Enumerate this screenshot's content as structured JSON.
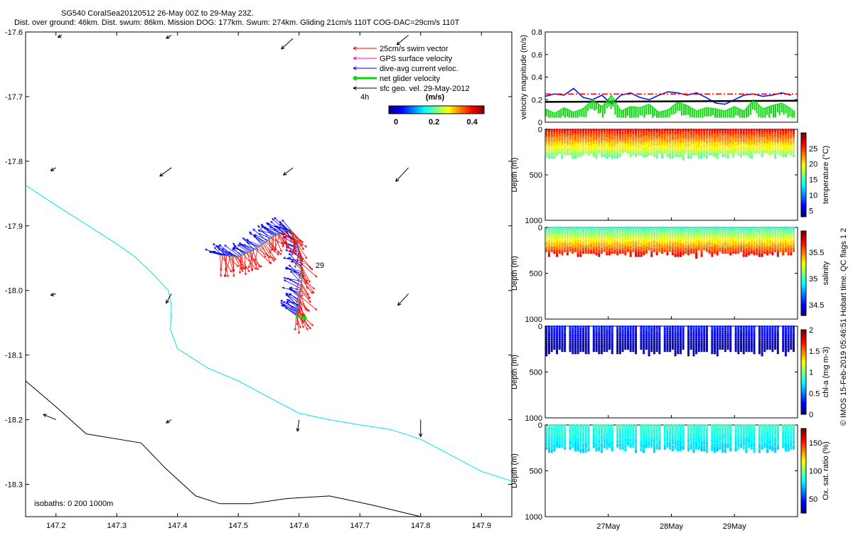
{
  "header": {
    "line1": "SG540 CoralSea20120512 26-May 00Z to 29-May 23Z.",
    "line2": "Dist. over ground: 46km. Dist. swum: 86km. Mission DOG: 177km. Swum: 274km. Gliding 21cm/s 110T COG-DAC=29cm/s 110T"
  },
  "credit": "© IMOS 15-Feb-2019 05:46:51 Hobart time. QC flags 1  2",
  "colors": {
    "swim": "#ff0000",
    "gps": "#ff00ff",
    "dac": "#0000ff",
    "net": "#00dd00",
    "sfc": "#000000",
    "contour_200": "#00e5ee",
    "contour_1000": "#000000"
  },
  "chart_data": [
    {
      "type": "scatter",
      "id": "map",
      "title": "",
      "xlabel": "",
      "ylabel": "",
      "xlim": [
        147.15,
        147.95
      ],
      "ylim": [
        -18.35,
        -17.6
      ],
      "xticks": [
        147.2,
        147.3,
        147.4,
        147.5,
        147.6,
        147.7,
        147.8,
        147.9
      ],
      "yticks": [
        -17.6,
        -17.7,
        -17.8,
        -17.9,
        -18.0,
        -18.1,
        -18.2,
        -18.3
      ],
      "legend": {
        "placement": "top-right",
        "entries": [
          "25cm/s swim vector",
          "GPS surface velocity",
          "dive-avg current veloc.",
          "net glider velocity",
          "sfc geo. vel. 29-May-2012"
        ],
        "colors": [
          "#ff0000",
          "#ff00ff",
          "#0000ff",
          "#00dd00",
          "#000000"
        ]
      },
      "timestep_label": "4h",
      "colorbar": {
        "label": "(m/s)",
        "ticks": [
          0,
          0.2,
          0.4
        ],
        "range": [
          0,
          0.5
        ]
      },
      "isobath_label": "isobaths: 0   200  1000m",
      "day_label": "29",
      "contour_200": [
        [
          147.15,
          -17.837
        ],
        [
          147.2,
          -17.868
        ],
        [
          147.25,
          -17.898
        ],
        [
          147.3,
          -17.928
        ],
        [
          147.33,
          -17.948
        ],
        [
          147.36,
          -17.975
        ],
        [
          147.385,
          -18.0
        ],
        [
          147.39,
          -18.025
        ],
        [
          147.388,
          -18.06
        ],
        [
          147.4,
          -18.09
        ],
        [
          147.45,
          -18.12
        ],
        [
          147.5,
          -18.14
        ],
        [
          147.55,
          -18.165
        ],
        [
          147.6,
          -18.19
        ],
        [
          147.65,
          -18.2
        ],
        [
          147.7,
          -18.208
        ],
        [
          147.75,
          -18.215
        ],
        [
          147.8,
          -18.23
        ],
        [
          147.85,
          -18.255
        ],
        [
          147.9,
          -18.28
        ],
        [
          147.95,
          -18.295
        ]
      ],
      "contour_1000": [
        [
          147.15,
          -18.14
        ],
        [
          147.2,
          -18.18
        ],
        [
          147.25,
          -18.222
        ],
        [
          147.34,
          -18.236
        ],
        [
          147.38,
          -18.275
        ],
        [
          147.43,
          -18.318
        ],
        [
          147.47,
          -18.33
        ],
        [
          147.52,
          -18.33
        ],
        [
          147.58,
          -18.322
        ],
        [
          147.65,
          -18.318
        ],
        [
          147.72,
          -18.332
        ],
        [
          147.8,
          -18.35
        ]
      ],
      "track": [
        [
          147.47,
          -17.945
        ],
        [
          147.5,
          -17.948
        ],
        [
          147.53,
          -17.935
        ],
        [
          147.56,
          -17.915
        ],
        [
          147.585,
          -17.905
        ],
        [
          147.6,
          -17.935
        ],
        [
          147.605,
          -17.98
        ],
        [
          147.6,
          -18.02
        ],
        [
          147.595,
          -18.04
        ]
      ],
      "net_velocity_segment": [
        [
          147.595,
          -18.04
        ],
        [
          147.612,
          -18.043
        ]
      ],
      "surface_current_vectors": [
        {
          "lon": 147.21,
          "lat": -17.605,
          "u": -0.08,
          "v": -0.04
        },
        {
          "lon": 147.39,
          "lat": -17.605,
          "u": -0.1,
          "v": -0.06
        },
        {
          "lon": 147.59,
          "lat": -17.61,
          "u": -0.22,
          "v": -0.2
        },
        {
          "lon": 147.78,
          "lat": -17.605,
          "u": -0.22,
          "v": -0.18
        },
        {
          "lon": 147.2,
          "lat": -17.81,
          "u": -0.1,
          "v": -0.06
        },
        {
          "lon": 147.39,
          "lat": -17.81,
          "u": -0.22,
          "v": -0.16
        },
        {
          "lon": 147.59,
          "lat": -17.81,
          "u": -0.18,
          "v": -0.14
        },
        {
          "lon": 147.78,
          "lat": -17.81,
          "u": -0.24,
          "v": -0.26
        },
        {
          "lon": 147.2,
          "lat": -18.005,
          "u": -0.1,
          "v": -0.03
        },
        {
          "lon": 147.39,
          "lat": -18.005,
          "u": -0.1,
          "v": -0.18
        },
        {
          "lon": 147.78,
          "lat": -18.005,
          "u": -0.2,
          "v": -0.22
        },
        {
          "lon": 147.2,
          "lat": -18.2,
          "u": -0.24,
          "v": 0.1
        },
        {
          "lon": 147.39,
          "lat": -18.2,
          "u": -0.1,
          "v": -0.06
        },
        {
          "lon": 147.6,
          "lat": -18.2,
          "u": -0.03,
          "v": -0.22
        },
        {
          "lon": 147.8,
          "lat": -18.2,
          "u": 0.0,
          "v": -0.32
        }
      ]
    },
    {
      "type": "line",
      "id": "velocity",
      "ylabel": "velocity magnitude (m/s)",
      "xlim": [
        0,
        4
      ],
      "ylim": [
        0,
        0.8
      ],
      "yticks": [
        0,
        0.2,
        0.4,
        0.6,
        0.8
      ],
      "series": [
        {
          "color": "#0000ff",
          "x": [
            0,
            0.15,
            0.3,
            0.45,
            0.6,
            0.75,
            0.9,
            1.05,
            1.2,
            1.35,
            1.5,
            1.65,
            1.8,
            1.95,
            2.1,
            2.25,
            2.4,
            2.55,
            2.7,
            2.85,
            3.0,
            3.15,
            3.3,
            3.45,
            3.6,
            3.75,
            3.9
          ],
          "values": [
            0.23,
            0.25,
            0.24,
            0.3,
            0.22,
            0.2,
            0.24,
            0.16,
            0.24,
            0.26,
            0.22,
            0.2,
            0.24,
            0.27,
            0.26,
            0.24,
            0.26,
            0.22,
            0.17,
            0.16,
            0.2,
            0.24,
            0.25,
            0.23,
            0.24,
            0.26,
            0.24
          ]
        },
        {
          "color": "#00dd00",
          "x": [
            0,
            0.15,
            0.3,
            0.45,
            0.6,
            0.75,
            0.9,
            1.05,
            1.2,
            1.35,
            1.5,
            1.65,
            1.8,
            1.95,
            2.1,
            2.25,
            2.4,
            2.55,
            2.7,
            2.85,
            3.0,
            3.15,
            3.3,
            3.45,
            3.6,
            3.75,
            3.9
          ],
          "values": [
            0.12,
            0.08,
            0.13,
            0.09,
            0.12,
            0.2,
            0.14,
            0.24,
            0.1,
            0.14,
            0.13,
            0.16,
            0.09,
            0.11,
            0.18,
            0.15,
            0.1,
            0.13,
            0.12,
            0.1,
            0.14,
            0.1,
            0.2,
            0.12,
            0.15,
            0.17,
            0.12
          ]
        },
        {
          "color": "#ff0000",
          "x": [
            0,
            4
          ],
          "values": [
            0.25,
            0.25
          ]
        },
        {
          "color": "#000000",
          "x": [
            0,
            4
          ],
          "values": [
            0.18,
            0.19
          ]
        }
      ]
    },
    {
      "type": "scatter",
      "id": "temperature",
      "ylabel": "Depth (m)",
      "ylim": [
        0,
        1000
      ],
      "yticks": [
        0,
        500,
        1000
      ],
      "colorbar_label": "temperature (°C)",
      "colorbar_ticks": [
        5,
        10,
        15,
        20,
        25
      ],
      "colorbar_range": [
        3,
        30
      ],
      "profile_depth_range": [
        0,
        300
      ],
      "value_surface": 27,
      "value_bottom": 16
    },
    {
      "type": "scatter",
      "id": "salinity",
      "ylabel": "Depth (m)",
      "ylim": [
        0,
        1000
      ],
      "yticks": [
        0,
        500,
        1000
      ],
      "colorbar_label": "salinity",
      "colorbar_ticks": [
        34.5,
        35,
        35.5
      ],
      "colorbar_range": [
        34.3,
        35.9
      ],
      "profile_depth_range": [
        0,
        300
      ],
      "value_surface": 34.95,
      "value_bottom": 35.7
    },
    {
      "type": "scatter",
      "id": "chla",
      "ylabel": "Depth (m)",
      "ylim": [
        0,
        1000
      ],
      "yticks": [
        0,
        500,
        1000
      ],
      "colorbar_label": "chl-a (mg m-3)",
      "colorbar_ticks": [
        0,
        0.5,
        1,
        1.5,
        2
      ],
      "colorbar_range": [
        0,
        2
      ],
      "profile_depth_range": [
        0,
        300
      ],
      "value_surface": 0.3,
      "value_bottom": 0.08
    },
    {
      "type": "scatter",
      "id": "oxygen",
      "ylabel": "Depth (m)",
      "ylim": [
        0,
        1000
      ],
      "yticks": [
        0,
        500,
        1000
      ],
      "colorbar_label": "Ox. sat. ratio (%)",
      "colorbar_ticks": [
        50,
        100,
        150
      ],
      "colorbar_range": [
        25,
        175
      ],
      "profile_depth_range": [
        0,
        280
      ],
      "value_surface": 90,
      "value_bottom": 75,
      "xticks": [
        1,
        2,
        3
      ],
      "xticklabels": [
        "27May",
        "28May",
        "29May"
      ]
    }
  ]
}
